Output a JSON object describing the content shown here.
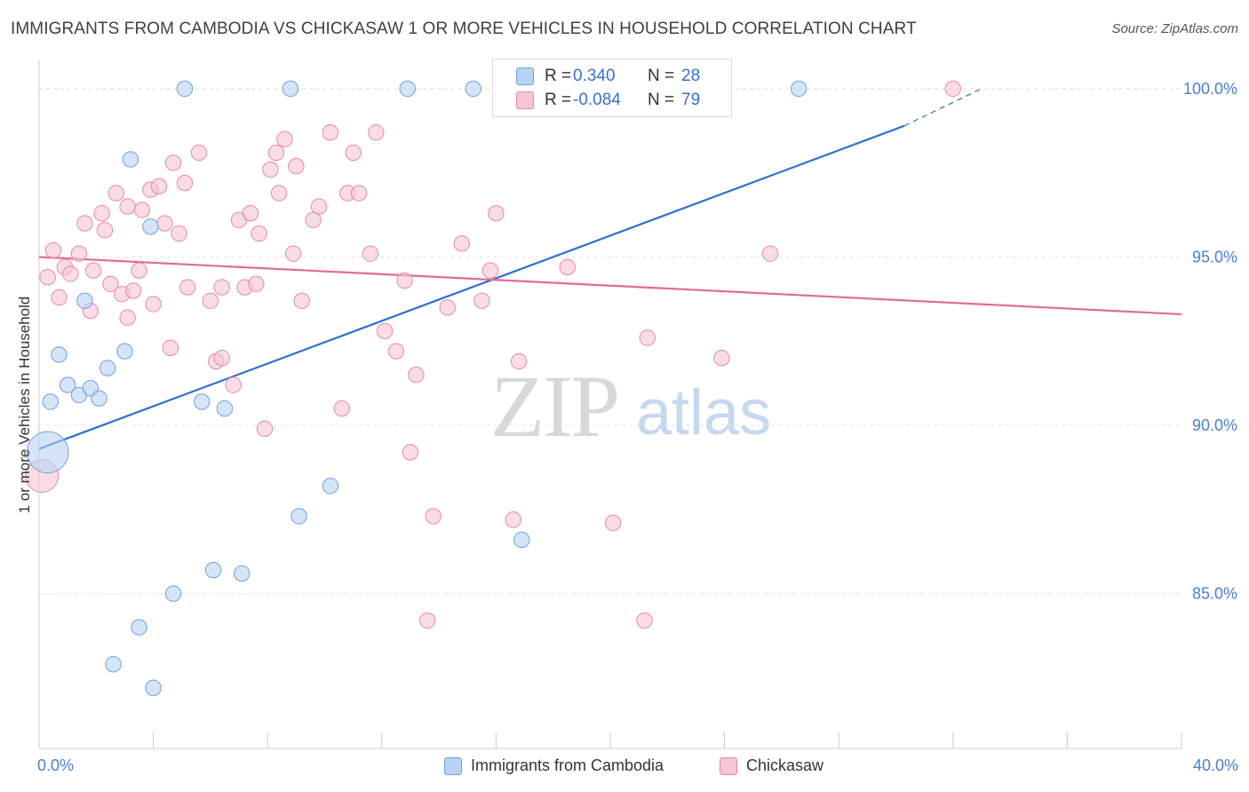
{
  "title": "IMMIGRANTS FROM CAMBODIA VS CHICKASAW 1 OR MORE VEHICLES IN HOUSEHOLD CORRELATION CHART",
  "source": "Source: ZipAtlas.com",
  "watermark": {
    "zip": "ZIP",
    "atlas": "atlas"
  },
  "colors": {
    "cambodia_fill": "#b9d3f2",
    "cambodia_stroke": "#6fa0dc",
    "cambodia_line": "#2f6fd1",
    "chickasaw_fill": "#f7c5d3",
    "chickasaw_stroke": "#e68aa6",
    "chickasaw_line": "#e26b93",
    "axis_label": "#4a7fd0",
    "grid": "#e3e3e3"
  },
  "legend": {
    "rows": [
      {
        "r_label": "R =",
        "r_value": "0.340",
        "n_label": "N =",
        "n_value": "28"
      },
      {
        "r_label": "R =",
        "r_value": "-0.084",
        "n_label": "N =",
        "n_value": "79"
      }
    ]
  },
  "bottom_legend": [
    "Immigrants from Cambodia",
    "Chickasaw"
  ],
  "chart_data": {
    "type": "scatter",
    "xlabel": "",
    "ylabel": "1 or more Vehicles in Household",
    "xlim": [
      0,
      40
    ],
    "ylim": [
      80.4,
      101.0
    ],
    "x_tick_labels": [
      "0.0%",
      "40.0%"
    ],
    "y_ticks": [
      85,
      90,
      95,
      100
    ],
    "y_tick_labels": [
      "85.0%",
      "90.0%",
      "95.0%",
      "100.0%"
    ],
    "grid": true,
    "legend_position": "top-center",
    "series": [
      {
        "name": "Immigrants from Cambodia",
        "r": 0.34,
        "n": 28,
        "trend": {
          "x": [
            0,
            30.3
          ],
          "y": [
            89.3,
            98.9
          ],
          "dashed_to": [
            33.0,
            100.0
          ]
        },
        "points": [
          [
            0.3,
            89.2,
            28
          ],
          [
            0.4,
            90.7,
            10
          ],
          [
            0.7,
            92.1,
            10
          ],
          [
            1.0,
            91.2,
            10
          ],
          [
            1.4,
            90.9,
            10
          ],
          [
            1.6,
            93.7,
            10
          ],
          [
            1.8,
            91.1,
            10
          ],
          [
            2.1,
            90.8,
            10
          ],
          [
            2.4,
            91.7,
            10
          ],
          [
            2.6,
            82.9,
            10
          ],
          [
            3.0,
            92.2,
            10
          ],
          [
            3.2,
            97.9,
            10
          ],
          [
            3.5,
            84.0,
            10
          ],
          [
            3.9,
            95.9,
            10
          ],
          [
            4.0,
            82.2,
            10
          ],
          [
            4.7,
            85.0,
            10
          ],
          [
            5.1,
            100.0,
            10
          ],
          [
            5.7,
            90.7,
            10
          ],
          [
            6.1,
            85.7,
            10
          ],
          [
            6.5,
            90.5,
            10
          ],
          [
            7.1,
            85.6,
            10
          ],
          [
            8.8,
            100.0,
            10
          ],
          [
            9.1,
            87.3,
            10
          ],
          [
            10.2,
            88.2,
            10
          ],
          [
            12.9,
            100.0,
            10
          ],
          [
            15.2,
            100.0,
            10
          ],
          [
            16.9,
            86.6,
            10
          ],
          [
            26.6,
            100.0,
            10
          ]
        ]
      },
      {
        "name": "Chickasaw",
        "r": -0.084,
        "n": 79,
        "trend": {
          "x": [
            0,
            40
          ],
          "y": [
            95.0,
            93.3
          ]
        },
        "points": [
          [
            0.1,
            88.5,
            22
          ],
          [
            0.3,
            94.4,
            10
          ],
          [
            0.5,
            95.2,
            10
          ],
          [
            0.7,
            93.8,
            10
          ],
          [
            0.9,
            94.7,
            10
          ],
          [
            1.1,
            94.5,
            10
          ],
          [
            1.4,
            95.1,
            10
          ],
          [
            1.6,
            96.0,
            10
          ],
          [
            1.8,
            93.4,
            10
          ],
          [
            1.9,
            94.6,
            10
          ],
          [
            2.2,
            96.3,
            10
          ],
          [
            2.3,
            95.8,
            10
          ],
          [
            2.5,
            94.2,
            10
          ],
          [
            2.7,
            96.9,
            10
          ],
          [
            2.9,
            93.9,
            10
          ],
          [
            3.1,
            93.2,
            10
          ],
          [
            3.3,
            94.0,
            10
          ],
          [
            3.5,
            94.6,
            10
          ],
          [
            3.6,
            96.4,
            10
          ],
          [
            3.9,
            97.0,
            10
          ],
          [
            4.0,
            93.6,
            10
          ],
          [
            4.2,
            97.1,
            10
          ],
          [
            4.4,
            96.0,
            10
          ],
          [
            4.6,
            92.3,
            10
          ],
          [
            4.7,
            97.8,
            10
          ],
          [
            4.9,
            95.7,
            10
          ],
          [
            5.1,
            97.2,
            10
          ],
          [
            5.2,
            94.1,
            10
          ],
          [
            5.6,
            98.1,
            10
          ],
          [
            6.0,
            93.7,
            10
          ],
          [
            6.2,
            91.9,
            10
          ],
          [
            6.4,
            92.0,
            10
          ],
          [
            6.8,
            91.2,
            10
          ],
          [
            7.0,
            96.1,
            10
          ],
          [
            7.2,
            94.1,
            10
          ],
          [
            7.4,
            96.3,
            10
          ],
          [
            7.6,
            94.2,
            10
          ],
          [
            7.7,
            95.7,
            10
          ],
          [
            7.9,
            89.9,
            10
          ],
          [
            8.1,
            97.6,
            10
          ],
          [
            8.3,
            98.1,
            10
          ],
          [
            8.4,
            96.9,
            10
          ],
          [
            8.6,
            98.5,
            10
          ],
          [
            8.9,
            95.1,
            10
          ],
          [
            9.0,
            97.7,
            10
          ],
          [
            9.2,
            93.7,
            10
          ],
          [
            9.6,
            96.1,
            10
          ],
          [
            9.8,
            96.5,
            10
          ],
          [
            10.2,
            98.7,
            10
          ],
          [
            10.6,
            90.5,
            10
          ],
          [
            10.8,
            96.9,
            10
          ],
          [
            11.0,
            98.1,
            10
          ],
          [
            11.2,
            96.9,
            10
          ],
          [
            11.6,
            95.1,
            10
          ],
          [
            11.8,
            98.7,
            10
          ],
          [
            12.1,
            92.8,
            10
          ],
          [
            12.5,
            92.2,
            10
          ],
          [
            13.0,
            89.2,
            10
          ],
          [
            13.2,
            91.5,
            10
          ],
          [
            13.6,
            84.2,
            10
          ],
          [
            13.8,
            87.3,
            10
          ],
          [
            14.3,
            93.5,
            10
          ],
          [
            15.5,
            93.7,
            10
          ],
          [
            15.8,
            94.6,
            10
          ],
          [
            16.0,
            96.3,
            10
          ],
          [
            16.6,
            87.2,
            10
          ],
          [
            16.8,
            91.9,
            10
          ],
          [
            18.4,
            100.0,
            10
          ],
          [
            18.5,
            94.7,
            10
          ],
          [
            20.1,
            87.1,
            10
          ],
          [
            21.2,
            84.2,
            10
          ],
          [
            21.3,
            92.6,
            10
          ],
          [
            23.9,
            92.0,
            10
          ],
          [
            25.6,
            95.1,
            10
          ],
          [
            32.0,
            100.0,
            10
          ],
          [
            3.1,
            96.5,
            10
          ],
          [
            6.4,
            94.1,
            10
          ],
          [
            12.8,
            94.3,
            10
          ],
          [
            14.8,
            95.4,
            10
          ]
        ]
      }
    ]
  }
}
